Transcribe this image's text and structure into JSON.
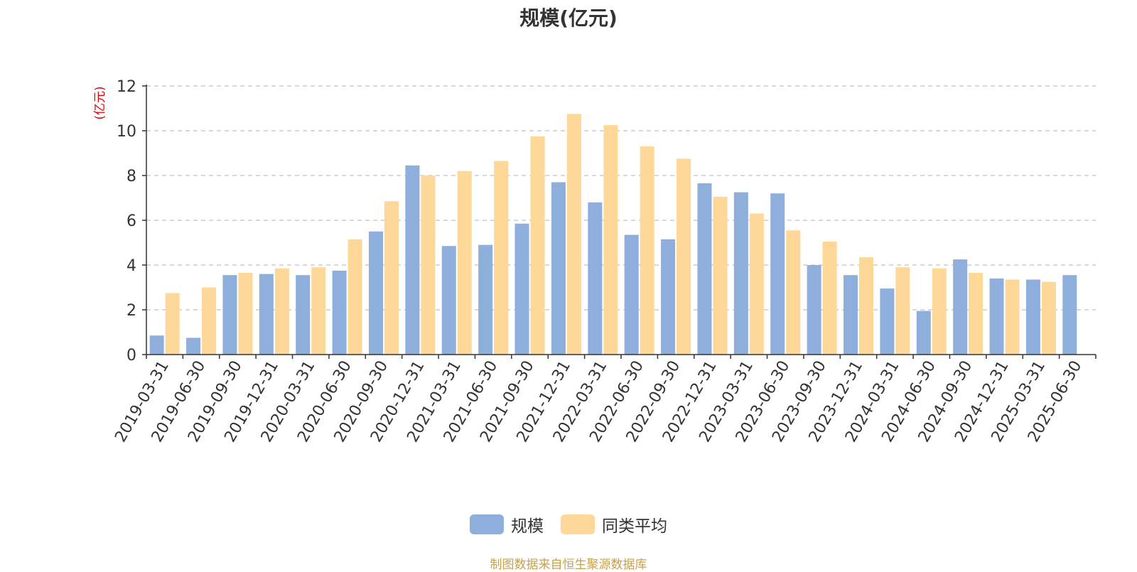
{
  "chart_data": {
    "type": "bar",
    "title": "规模(亿元)",
    "ylabel": "(亿元)",
    "ylim": [
      0,
      12
    ],
    "yticks": [
      0,
      2,
      4,
      6,
      8,
      10,
      12
    ],
    "grid": true,
    "legend_position": "bottom-center",
    "categories": [
      "2019-03-31",
      "2019-06-30",
      "2019-09-30",
      "2019-12-31",
      "2020-03-31",
      "2020-06-30",
      "2020-09-30",
      "2020-12-31",
      "2021-03-31",
      "2021-06-30",
      "2021-09-30",
      "2021-12-31",
      "2022-03-31",
      "2022-06-30",
      "2022-09-30",
      "2022-12-31",
      "2023-03-31",
      "2023-06-30",
      "2023-09-30",
      "2023-12-31",
      "2024-03-31",
      "2024-06-30",
      "2024-09-30",
      "2024-12-31",
      "2025-03-31",
      "2025-06-30"
    ],
    "series": [
      {
        "name": "规模",
        "color": "#8eaedb",
        "values": [
          0.85,
          0.75,
          3.55,
          3.6,
          3.55,
          3.75,
          5.5,
          8.45,
          4.85,
          4.9,
          5.85,
          7.7,
          6.8,
          5.35,
          5.15,
          7.65,
          7.25,
          7.2,
          4.0,
          3.55,
          2.95,
          1.95,
          4.25,
          3.4,
          3.35,
          3.55
        ]
      },
      {
        "name": "同类平均",
        "color": "#fed899",
        "values": [
          2.75,
          3.0,
          3.65,
          3.85,
          3.9,
          5.15,
          6.85,
          8.0,
          8.2,
          8.65,
          9.75,
          10.75,
          10.25,
          9.3,
          8.75,
          7.05,
          6.3,
          5.55,
          5.05,
          4.35,
          3.9,
          3.85,
          3.65,
          3.35,
          3.25,
          null
        ]
      }
    ]
  },
  "source_note": "制图数据来自恒生聚源数据库",
  "colors": {
    "axis_label": "#e00000",
    "title": "#333333",
    "source": "#c9a04a"
  }
}
